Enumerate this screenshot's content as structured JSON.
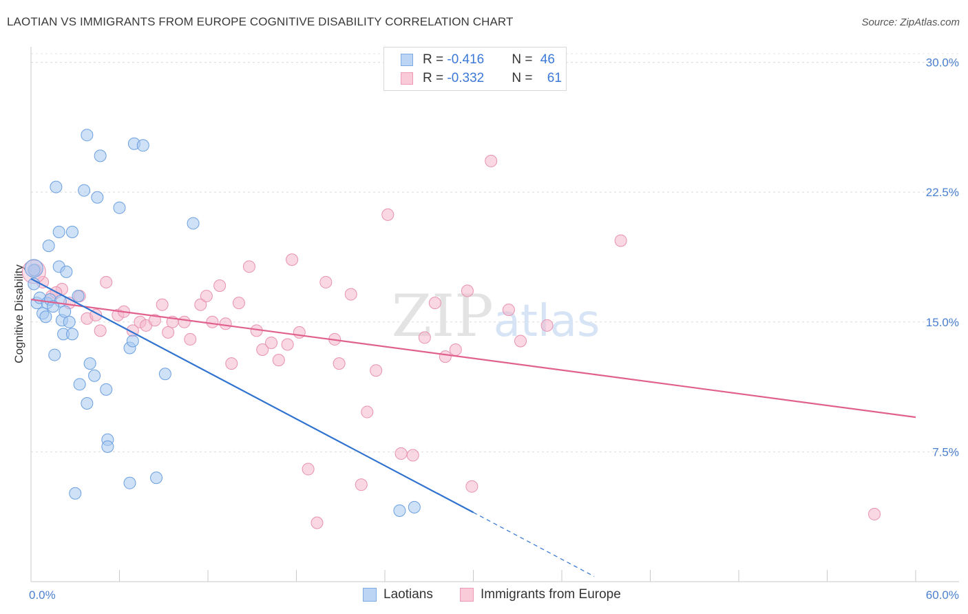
{
  "title": "LAOTIAN VS IMMIGRANTS FROM EUROPE COGNITIVE DISABILITY CORRELATION CHART",
  "source": "Source: ZipAtlas.com",
  "watermark": "ZIPatlas",
  "colors": {
    "blue_fill": "#a8c8f0",
    "blue_stroke": "#6a9fe0",
    "blue_line": "#2f72d0",
    "pink_fill": "#f4b8cc",
    "pink_stroke": "#e890b0",
    "pink_line": "#e0608e",
    "tick_label": "#4a7fcf"
  },
  "legend": {
    "rows": [
      {
        "r_label": "R = ",
        "r_value": "-0.416",
        "n_label": "N = ",
        "n_value": "46"
      },
      {
        "r_label": "R = ",
        "r_value": "-0.332",
        "n_label": "N = ",
        "n_value": "61"
      }
    ]
  },
  "bottom_legend": {
    "series1": "Laotians",
    "series2": "Immigrants from Europe"
  },
  "chart_data": {
    "type": "scatter",
    "title": "LAOTIAN VS IMMIGRANTS FROM EUROPE COGNITIVE DISABILITY CORRELATION CHART",
    "xlabel": "",
    "ylabel": "Cognitive Disability",
    "xlim": [
      0,
      60
    ],
    "ylim": [
      0,
      30.5
    ],
    "x_tick_labels": [
      "0.0%",
      "60.0%"
    ],
    "y_ticks": [
      7.5,
      15.0,
      22.5,
      30.0
    ],
    "y_tick_labels": [
      "7.5%",
      "15.0%",
      "22.5%",
      "30.0%"
    ],
    "grid": true,
    "series": [
      {
        "name": "Laotians",
        "r": -0.416,
        "n": 46,
        "trend": {
          "x0": 0.0,
          "y0": 17.5,
          "x1": 30.0,
          "y1": 4.0,
          "dash_x1": 38.2,
          "dash_y1": 0.3
        },
        "points": [
          [
            0.2,
            18.0
          ],
          [
            0.2,
            17.2
          ],
          [
            0.4,
            16.1
          ],
          [
            0.6,
            16.4
          ],
          [
            0.8,
            15.5
          ],
          [
            1.0,
            15.3
          ],
          [
            1.1,
            16.1
          ],
          [
            1.3,
            16.3
          ],
          [
            1.2,
            19.4
          ],
          [
            1.6,
            13.1
          ],
          [
            1.7,
            22.8
          ],
          [
            1.9,
            20.2
          ],
          [
            1.9,
            18.2
          ],
          [
            2.1,
            15.1
          ],
          [
            2.2,
            14.3
          ],
          [
            2.3,
            15.6
          ],
          [
            2.4,
            17.9
          ],
          [
            2.6,
            15.0
          ],
          [
            2.8,
            14.3
          ],
          [
            2.8,
            20.2
          ],
          [
            3.0,
            5.1
          ],
          [
            3.3,
            11.4
          ],
          [
            3.2,
            16.5
          ],
          [
            3.6,
            22.6
          ],
          [
            3.8,
            25.8
          ],
          [
            3.8,
            10.3
          ],
          [
            4.0,
            12.6
          ],
          [
            4.3,
            11.9
          ],
          [
            4.5,
            22.2
          ],
          [
            4.7,
            24.6
          ],
          [
            5.1,
            11.1
          ],
          [
            5.2,
            8.2
          ],
          [
            5.2,
            7.8
          ],
          [
            6.0,
            21.6
          ],
          [
            6.7,
            5.7
          ],
          [
            6.7,
            13.5
          ],
          [
            6.9,
            13.9
          ],
          [
            7.0,
            25.3
          ],
          [
            7.6,
            25.2
          ],
          [
            8.5,
            6.0
          ],
          [
            9.1,
            12.0
          ],
          [
            11.0,
            20.7
          ],
          [
            25.0,
            4.1
          ],
          [
            26.0,
            4.3
          ],
          [
            2.0,
            16.2
          ],
          [
            1.5,
            15.9
          ]
        ]
      },
      {
        "name": "Immigrants from Europe",
        "r": -0.332,
        "n": 61,
        "trend": {
          "x0": 0.0,
          "y0": 16.3,
          "x1": 60.0,
          "y1": 9.5
        },
        "points": [
          [
            0.3,
            18.0
          ],
          [
            0.8,
            17.3
          ],
          [
            1.4,
            16.5
          ],
          [
            2.1,
            16.9
          ],
          [
            2.6,
            16.1
          ],
          [
            3.3,
            16.5
          ],
          [
            3.8,
            15.2
          ],
          [
            4.4,
            15.4
          ],
          [
            4.7,
            14.5
          ],
          [
            5.1,
            17.3
          ],
          [
            5.9,
            15.4
          ],
          [
            6.3,
            15.6
          ],
          [
            6.9,
            14.5
          ],
          [
            7.4,
            15.0
          ],
          [
            7.8,
            14.8
          ],
          [
            8.4,
            15.1
          ],
          [
            8.9,
            16.0
          ],
          [
            9.3,
            14.4
          ],
          [
            9.6,
            15.0
          ],
          [
            10.4,
            15.0
          ],
          [
            10.8,
            14.0
          ],
          [
            11.5,
            16.0
          ],
          [
            11.9,
            16.5
          ],
          [
            12.3,
            15.0
          ],
          [
            12.8,
            17.1
          ],
          [
            13.2,
            14.9
          ],
          [
            13.6,
            12.6
          ],
          [
            14.1,
            16.1
          ],
          [
            14.8,
            18.2
          ],
          [
            15.3,
            14.5
          ],
          [
            15.7,
            13.4
          ],
          [
            16.3,
            13.8
          ],
          [
            16.8,
            12.8
          ],
          [
            17.4,
            13.7
          ],
          [
            17.7,
            18.6
          ],
          [
            18.2,
            14.4
          ],
          [
            18.8,
            6.5
          ],
          [
            19.4,
            3.4
          ],
          [
            20.0,
            17.3
          ],
          [
            20.6,
            14.0
          ],
          [
            20.9,
            12.6
          ],
          [
            21.7,
            16.6
          ],
          [
            22.4,
            5.6
          ],
          [
            22.8,
            9.8
          ],
          [
            23.4,
            12.2
          ],
          [
            24.2,
            21.2
          ],
          [
            25.1,
            7.4
          ],
          [
            25.9,
            7.3
          ],
          [
            26.7,
            14.1
          ],
          [
            27.4,
            16.1
          ],
          [
            28.1,
            13.0
          ],
          [
            28.8,
            13.4
          ],
          [
            29.6,
            16.8
          ],
          [
            29.9,
            5.5
          ],
          [
            31.2,
            24.3
          ],
          [
            32.4,
            15.7
          ],
          [
            33.2,
            13.9
          ],
          [
            35.0,
            14.8
          ],
          [
            40.0,
            19.7
          ],
          [
            57.2,
            3.9
          ],
          [
            1.7,
            16.7
          ]
        ]
      }
    ]
  }
}
